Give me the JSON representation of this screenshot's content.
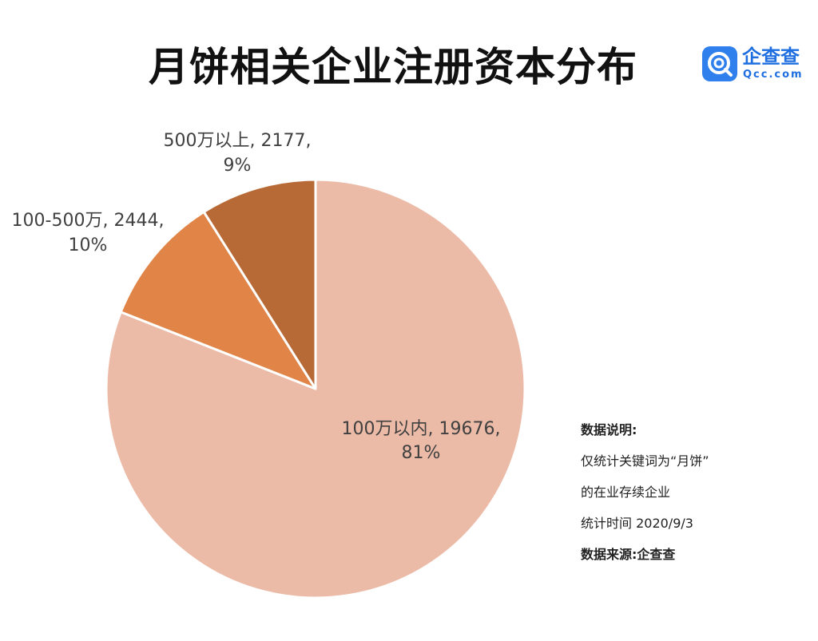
{
  "title": "月饼相关企业注册资本分布",
  "logo": {
    "name_cn": "企查查",
    "domain": "Qcc.com"
  },
  "colors": {
    "slice_1": "#ecbba7",
    "slice_2": "#e08547",
    "slice_3": "#b86a36",
    "title": "#111111",
    "logo": "#2f80ed"
  },
  "chart_data": {
    "type": "pie",
    "title": "月饼相关企业注册资本分布",
    "slices": [
      {
        "label": "100万以内",
        "value": 19676,
        "percent": 81,
        "text_line1": "100万以内, 19676,",
        "text_line2": "81%"
      },
      {
        "label": "100-500万",
        "value": 2444,
        "percent": 10,
        "text_line1": "100-500万, 2444,",
        "text_line2": "10%"
      },
      {
        "label": "500万以上",
        "value": 2177,
        "percent": 9,
        "text_line1": "500万以上, 2177,",
        "text_line2": "9%"
      }
    ],
    "start": "12 o'clock",
    "direction": "clockwise",
    "legend": "none"
  },
  "notes": [
    "数据说明:",
    "仅统计关键词为“月饼”",
    "的在业存续企业",
    "统计时间 2020/9/3",
    "数据来源:企查查"
  ]
}
